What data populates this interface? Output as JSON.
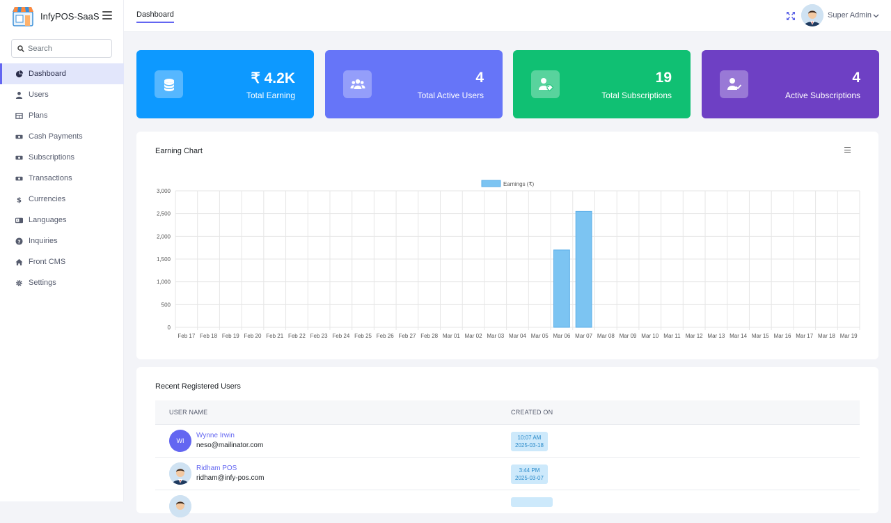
{
  "app": {
    "name": "InfyPOS-SaaS"
  },
  "header": {
    "tab": "Dashboard",
    "user_name": "Super Admin"
  },
  "search": {
    "placeholder": "Search"
  },
  "sidebar": {
    "items": [
      {
        "label": "Dashboard",
        "icon": "pie-chart-icon"
      },
      {
        "label": "Users",
        "icon": "user-icon"
      },
      {
        "label": "Plans",
        "icon": "table-icon"
      },
      {
        "label": "Cash Payments",
        "icon": "money-icon"
      },
      {
        "label": "Subscriptions",
        "icon": "money-icon"
      },
      {
        "label": "Transactions",
        "icon": "money-icon"
      },
      {
        "label": "Currencies",
        "icon": "dollar-icon"
      },
      {
        "label": "Languages",
        "icon": "language-icon"
      },
      {
        "label": "Inquiries",
        "icon": "question-icon"
      },
      {
        "label": "Front CMS",
        "icon": "home-icon"
      },
      {
        "label": "Settings",
        "icon": "gear-icon"
      }
    ]
  },
  "cards": [
    {
      "value": "₹ 4.2K",
      "label": "Total Earning",
      "icon": "coins-icon",
      "color": "#0d99ff"
    },
    {
      "value": "4",
      "label": "Total Active Users",
      "icon": "users-icon",
      "color": "#6675f8"
    },
    {
      "value": "19",
      "label": "Total Subscriptions",
      "icon": "user-tag-icon",
      "color": "#10c073"
    },
    {
      "value": "4",
      "label": "Active Subscriptions",
      "icon": "user-check-icon",
      "color": "#6e40c4"
    }
  ],
  "chart_section": {
    "title": "Earning Chart"
  },
  "chart_data": {
    "type": "bar",
    "title": "",
    "xlabel": "",
    "ylabel": "",
    "categories": [
      "Feb 17",
      "Feb 18",
      "Feb 19",
      "Feb 20",
      "Feb 21",
      "Feb 22",
      "Feb 23",
      "Feb 24",
      "Feb 25",
      "Feb 26",
      "Feb 27",
      "Feb 28",
      "Mar 01",
      "Mar 02",
      "Mar 03",
      "Mar 04",
      "Mar 05",
      "Mar 06",
      "Mar 07",
      "Mar 08",
      "Mar 09",
      "Mar 10",
      "Mar 11",
      "Mar 12",
      "Mar 13",
      "Mar 14",
      "Mar 15",
      "Mar 16",
      "Mar 17",
      "Mar 18",
      "Mar 19"
    ],
    "series": [
      {
        "name": "Earnings (₹)",
        "values": [
          0,
          0,
          0,
          0,
          0,
          0,
          0,
          0,
          0,
          0,
          0,
          0,
          0,
          0,
          0,
          0,
          0,
          1700,
          2550,
          0,
          0,
          0,
          0,
          0,
          0,
          0,
          0,
          0,
          0,
          0,
          0
        ]
      }
    ],
    "yticks": [
      "0",
      "500",
      "1,000",
      "1,500",
      "2,000",
      "2,500",
      "3,000"
    ],
    "ylim": [
      0,
      3000
    ],
    "grid": true,
    "legend": "top-center",
    "bar_color": "#7cc4f2"
  },
  "recent_users": {
    "title": "Recent Registered Users",
    "columns": [
      "USER NAME",
      "CREATED ON"
    ],
    "rows": [
      {
        "initials": "WI",
        "name": "Wynne Irwin",
        "email": "neso@mailinator.com",
        "time": "10:07 AM",
        "date": "2025-03-18"
      },
      {
        "initials": "",
        "name": "Ridham POS",
        "email": "ridham@infy-pos.com",
        "time": "3:44 PM",
        "date": "2025-03-07"
      }
    ]
  }
}
